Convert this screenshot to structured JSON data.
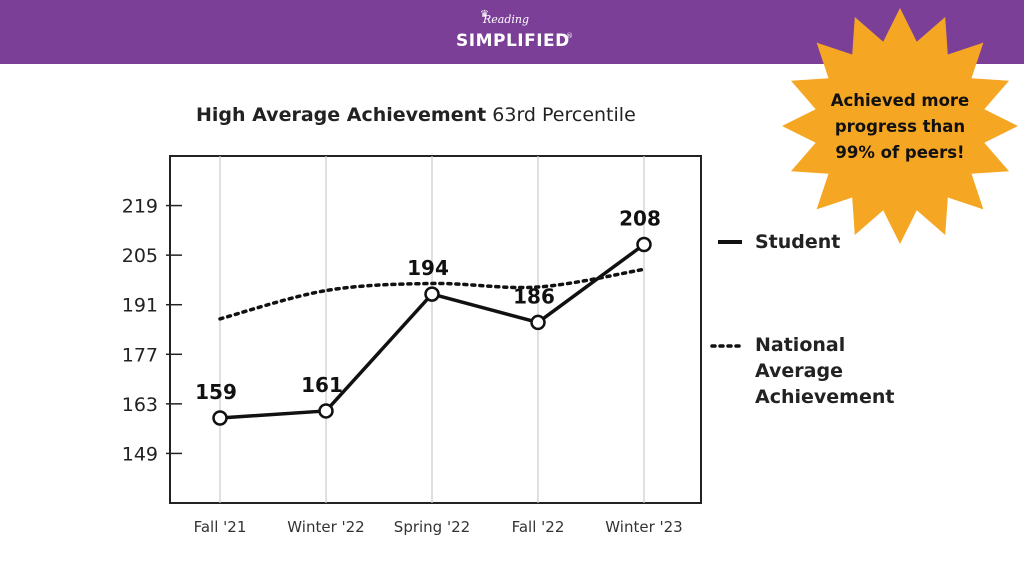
{
  "header": {
    "logo_script": "Reading",
    "logo_word": "SIMPLIFIED",
    "logo_mark": "®"
  },
  "title": {
    "bold": "High Average Achievement",
    "rest": "63rd Percentile"
  },
  "callout": {
    "lines": [
      "Achieved more",
      "progress than",
      "99% of peers!"
    ],
    "color": "#f5a623"
  },
  "legend": {
    "student": "Student",
    "national": [
      "National",
      "Average",
      "Achievement"
    ]
  },
  "colors": {
    "header_bg": "#7b3f98",
    "line": "#111111",
    "grid": "#cccccc"
  },
  "chart_data": {
    "type": "line",
    "categories": [
      "Fall '21",
      "Winter '22",
      "Spring '22",
      "Fall '22",
      "Winter '23"
    ],
    "yticks": [
      149,
      163,
      177,
      191,
      205,
      219
    ],
    "ylim": [
      135,
      233
    ],
    "grid": "vertical",
    "legend_position": "right",
    "series": [
      {
        "name": "Student",
        "style": "solid-markers",
        "values": [
          159,
          161,
          194,
          186,
          208
        ],
        "labels": [
          "159",
          "161",
          "194",
          "186",
          "208"
        ]
      },
      {
        "name": "National Average Achievement",
        "style": "dotted",
        "values": [
          187,
          195,
          197,
          196,
          201
        ]
      }
    ]
  }
}
